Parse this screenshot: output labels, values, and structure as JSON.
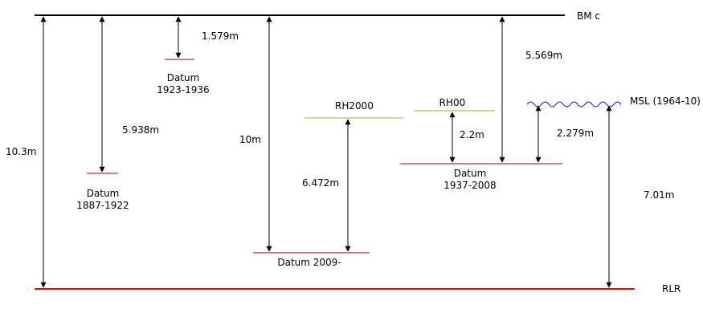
{
  "colors": {
    "reference": "#000000",
    "rlr": "#ff0000",
    "datum": "#aa0000",
    "rh": "#88bb22",
    "msl": "#0000ee"
  },
  "labels": {
    "bm": "BM c",
    "rlr": "RLR",
    "msl": "MSL (1964-10)",
    "rh2000": "RH2000",
    "rh00": "RH00",
    "datum_1887_l1": "Datum",
    "datum_1887_l2": "1887-1922",
    "datum_1923_l1": "Datum",
    "datum_1923_l2": "1923-1936",
    "datum_1937_l1": "Datum",
    "datum_1937_l2": "1937-2008",
    "datum_2009": "Datum 2009-"
  },
  "measurements": {
    "bm_to_rlr": "10.3m",
    "bm_to_datum_1887": "5.938m",
    "bm_to_datum_1923": "1.579m",
    "bm_to_datum_2009": "10m",
    "datum_2009_to_rh2000": "6.472m",
    "datum_1937_to_rh00": "2.2m",
    "bm_to_datum_1937": "5.569m",
    "datum_1937_to_msl": "2.279m",
    "rlr_to_msl": "7.01m"
  }
}
